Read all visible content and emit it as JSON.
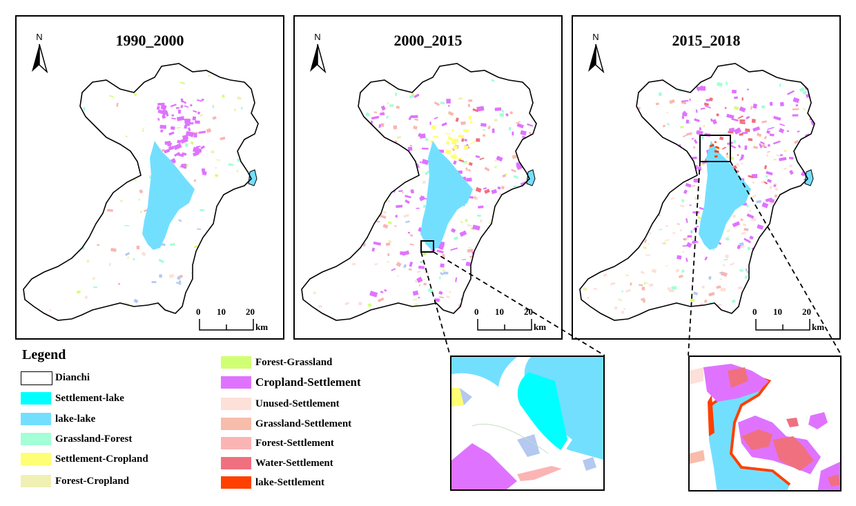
{
  "map": {
    "panels": [
      {
        "id": "p1",
        "title": "1990_2000"
      },
      {
        "id": "p2",
        "title": "2000_2015"
      },
      {
        "id": "p3",
        "title": "2015_2018"
      }
    ],
    "north_label": "N",
    "scale": {
      "ticks": [
        "0",
        "10",
        "20"
      ],
      "unit": "km"
    }
  },
  "legend": {
    "title": "Legend",
    "items": [
      {
        "label": "Dianchi",
        "color": "#ffffff",
        "outline": true
      },
      {
        "label": "Settlement-lake",
        "color": "#00ffff"
      },
      {
        "label": "lake-lake",
        "color": "#73dfff"
      },
      {
        "label": "Grassland-Forest",
        "color": "#a3ffd6"
      },
      {
        "label": "Settlement-Cropland",
        "color": "#ffff73"
      },
      {
        "label": "Forest-Cropland",
        "color": "#f0f0b4"
      },
      {
        "label": "Forest-Grassland",
        "color": "#d1ff73"
      },
      {
        "label": "Cropland-Settlement",
        "color": "#df73ff"
      },
      {
        "label": "Unused-Settlement",
        "color": "#fde0d8"
      },
      {
        "label": "Grassland-Settlement",
        "color": "#f8bcaa"
      },
      {
        "label": "Forest-Settlement",
        "color": "#fbb4b4"
      },
      {
        "label": "Water-Settlement",
        "color": "#f07080"
      },
      {
        "label": "lake-Settlement",
        "color": "#ff4000"
      }
    ]
  }
}
